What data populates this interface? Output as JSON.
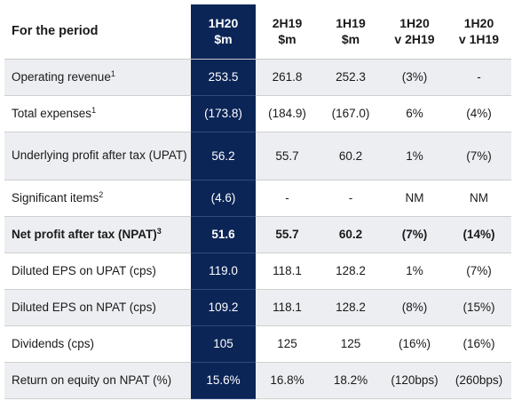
{
  "header": {
    "label": "For the period",
    "columns": [
      {
        "line1": "1H20",
        "line2": "$m"
      },
      {
        "line1": "2H19",
        "line2": "$m"
      },
      {
        "line1": "1H19",
        "line2": "$m"
      },
      {
        "line1": "1H20",
        "line2": "v 2H19"
      },
      {
        "line1": "1H20",
        "line2": "v 1H19"
      }
    ]
  },
  "rows": [
    {
      "label": "Operating revenue",
      "note": "1",
      "values": [
        "253.5",
        "261.8",
        "252.3",
        "(3%)",
        "-"
      ]
    },
    {
      "label": "Total expenses",
      "note": "1",
      "values": [
        "(173.8)",
        "(184.9)",
        "(167.0)",
        "6%",
        "(4%)"
      ]
    },
    {
      "label": "Underlying profit after tax (UPAT)",
      "note": "",
      "values": [
        "56.2",
        "55.7",
        "60.2",
        "1%",
        "(7%)"
      ]
    },
    {
      "label": "Significant items",
      "note": "2",
      "values": [
        "(4.6)",
        "-",
        "-",
        "NM",
        "NM"
      ]
    },
    {
      "label": "Net profit after tax (NPAT)",
      "note": "3",
      "values": [
        "51.6",
        "55.7",
        "60.2",
        "(7%)",
        "(14%)"
      ]
    },
    {
      "label": "Diluted EPS on UPAT (cps)",
      "note": "",
      "values": [
        "119.0",
        "118.1",
        "128.2",
        "1%",
        "(7%)"
      ]
    },
    {
      "label": "Diluted EPS on NPAT (cps)",
      "note": "",
      "values": [
        "109.2",
        "118.1",
        "128.2",
        "(8%)",
        "(15%)"
      ]
    },
    {
      "label": "Dividends (cps)",
      "note": "",
      "values": [
        "105",
        "125",
        "125",
        "(16%)",
        "(16%)"
      ]
    },
    {
      "label": "Return on equity on NPAT (%)",
      "note": "",
      "values": [
        "15.6%",
        "16.8%",
        "18.2%",
        "(120bps)",
        "(260bps)"
      ]
    }
  ],
  "colors": {
    "highlight_column": "#0b2557",
    "stripe": "#eceef1"
  }
}
